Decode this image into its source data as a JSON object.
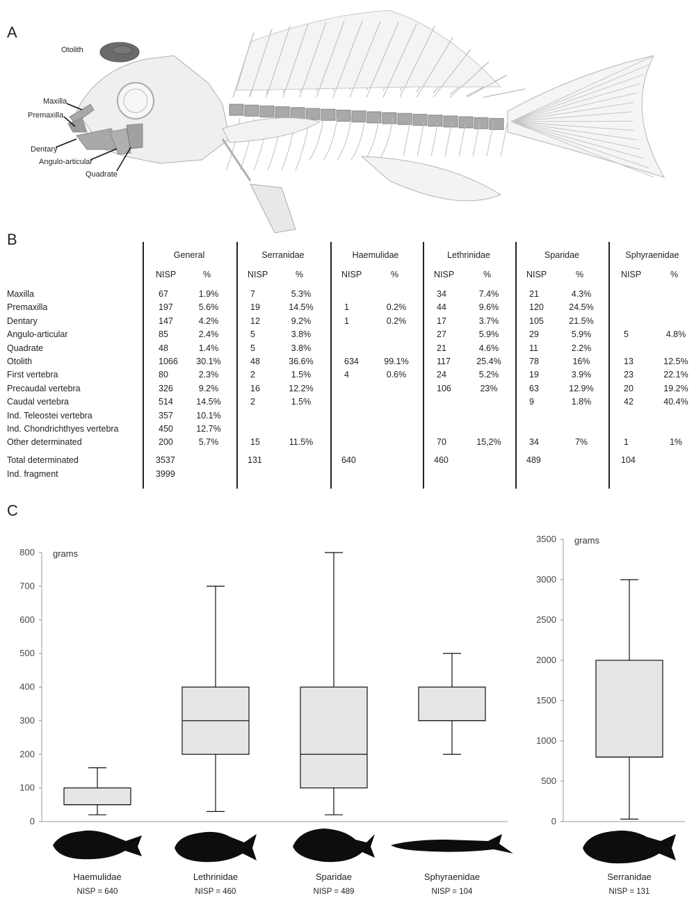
{
  "panels": {
    "a": "A",
    "b": "B",
    "c": "C"
  },
  "fish_labels": {
    "otolith": "Otolith",
    "maxilla": "Maxilla",
    "premaxilla": "Premaxilla",
    "dentary": "Dentary",
    "angulo_articular": "Angulo-articular",
    "quadrate": "Quadrate"
  },
  "table": {
    "groups": [
      "General",
      "Serranidae",
      "Haemulidae",
      "Lethrinidae",
      "Sparidae",
      "Sphyraenidae"
    ],
    "subheaders": [
      "NISP",
      "%"
    ],
    "rows": [
      {
        "label": "Maxilla",
        "cells": [
          [
            "67",
            "1.9%"
          ],
          [
            "7",
            "5.3%"
          ],
          [
            "",
            ""
          ],
          [
            "34",
            "7.4%"
          ],
          [
            "21",
            "4.3%"
          ],
          [
            "",
            ""
          ]
        ]
      },
      {
        "label": "Premaxilla",
        "cells": [
          [
            "197",
            "5.6%"
          ],
          [
            "19",
            "14.5%"
          ],
          [
            "1",
            "0.2%"
          ],
          [
            "44",
            "9.6%"
          ],
          [
            "120",
            "24.5%"
          ],
          [
            "",
            ""
          ]
        ]
      },
      {
        "label": "Dentary",
        "cells": [
          [
            "147",
            "4.2%"
          ],
          [
            "12",
            "9.2%"
          ],
          [
            "1",
            "0.2%"
          ],
          [
            "17",
            "3.7%"
          ],
          [
            "105",
            "21.5%"
          ],
          [
            "",
            ""
          ]
        ]
      },
      {
        "label": "Angulo-articular",
        "cells": [
          [
            "85",
            "2.4%"
          ],
          [
            "5",
            "3.8%"
          ],
          [
            "",
            ""
          ],
          [
            "27",
            "5.9%"
          ],
          [
            "29",
            "5.9%"
          ],
          [
            "5",
            "4.8%"
          ]
        ]
      },
      {
        "label": "Quadrate",
        "cells": [
          [
            "48",
            "1.4%"
          ],
          [
            "5",
            "3.8%"
          ],
          [
            "",
            ""
          ],
          [
            "21",
            "4.6%"
          ],
          [
            "11",
            "2.2%"
          ],
          [
            "",
            ""
          ]
        ]
      },
      {
        "label": "Otolith",
        "cells": [
          [
            "1066",
            "30.1%"
          ],
          [
            "48",
            "36.6%"
          ],
          [
            "634",
            "99.1%"
          ],
          [
            "117",
            "25.4%"
          ],
          [
            "78",
            "16%"
          ],
          [
            "13",
            "12.5%"
          ]
        ]
      },
      {
        "label": "First vertebra",
        "cells": [
          [
            "80",
            "2.3%"
          ],
          [
            "2",
            "1.5%"
          ],
          [
            "4",
            "0.6%"
          ],
          [
            "24",
            "5.2%"
          ],
          [
            "19",
            "3.9%"
          ],
          [
            "23",
            "22.1%"
          ]
        ]
      },
      {
        "label": "Precaudal vertebra",
        "cells": [
          [
            "326",
            "9.2%"
          ],
          [
            "16",
            "12.2%"
          ],
          [
            "",
            ""
          ],
          [
            "106",
            "23%"
          ],
          [
            "63",
            "12.9%"
          ],
          [
            "20",
            "19.2%"
          ]
        ]
      },
      {
        "label": "Caudal vertebra",
        "cells": [
          [
            "514",
            "14.5%"
          ],
          [
            "2",
            "1.5%"
          ],
          [
            "",
            ""
          ],
          [
            "",
            ""
          ],
          [
            "9",
            "1.8%"
          ],
          [
            "42",
            "40.4%"
          ]
        ]
      },
      {
        "label": "Ind. Teleostei vertebra",
        "cells": [
          [
            "357",
            "10.1%"
          ],
          [
            "",
            ""
          ],
          [
            "",
            ""
          ],
          [
            "",
            ""
          ],
          [
            "",
            ""
          ],
          [
            "",
            ""
          ]
        ]
      },
      {
        "label": "Ind. Chondrichthyes vertebra",
        "cells": [
          [
            "450",
            "12.7%"
          ],
          [
            "",
            ""
          ],
          [
            "",
            ""
          ],
          [
            "",
            ""
          ],
          [
            "",
            ""
          ],
          [
            "",
            ""
          ]
        ]
      },
      {
        "label": "Other determinated",
        "cells": [
          [
            "200",
            "5.7%"
          ],
          [
            "15",
            "11.5%"
          ],
          [
            "",
            ""
          ],
          [
            "70",
            "15,2%"
          ],
          [
            "34",
            "7%"
          ],
          [
            "1",
            "1%"
          ]
        ]
      }
    ],
    "totals": {
      "label": "Total determinated",
      "values": [
        "3537",
        "131",
        "640",
        "460",
        "489",
        "104"
      ]
    },
    "fragment": {
      "label": "Ind. fragment",
      "value": "3999"
    }
  },
  "chart_data": [
    {
      "type": "box",
      "ylabel": "grams",
      "ylim": [
        0,
        800
      ],
      "yticks": [
        0,
        100,
        200,
        300,
        400,
        500,
        600,
        700,
        800
      ],
      "series": [
        {
          "name": "Haemulidae",
          "caption": "NISP = 640",
          "min": 20,
          "q1": 50,
          "median": 50,
          "q3": 100,
          "max": 160
        },
        {
          "name": "Lethrinidae",
          "caption": "NISP = 460",
          "min": 30,
          "q1": 200,
          "median": 300,
          "q3": 400,
          "max": 700
        },
        {
          "name": "Sparidae",
          "caption": "NISP = 489",
          "min": 20,
          "q1": 100,
          "median": 200,
          "q3": 400,
          "max": 800
        },
        {
          "name": "Sphyraenidae",
          "caption": "NISP = 104",
          "min": 200,
          "q1": 300,
          "median": 300,
          "q3": 400,
          "max": 500
        }
      ]
    },
    {
      "type": "box",
      "ylabel": "grams",
      "ylim": [
        0,
        3500
      ],
      "yticks": [
        0,
        500,
        1000,
        1500,
        2000,
        2500,
        3000,
        3500
      ],
      "series": [
        {
          "name": "Serranidae",
          "caption": "NISP = 131",
          "min": 30,
          "q1": 800,
          "median": 800,
          "q3": 2000,
          "max": 3000
        }
      ]
    }
  ],
  "colors": {
    "box_fill": "#e6e6e6",
    "bone_gray": "#a9a9a9",
    "bone_light": "#ececec",
    "silhouette": "#0d0d0d"
  }
}
